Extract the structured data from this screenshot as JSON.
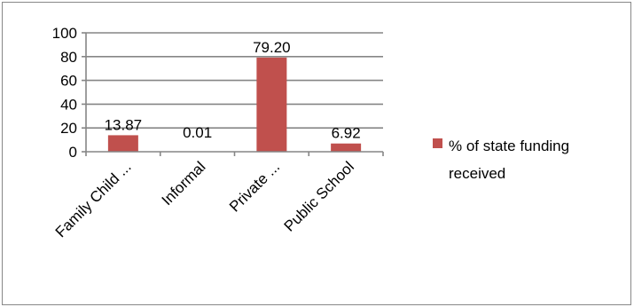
{
  "chart_data": {
    "type": "bar",
    "categories": [
      "Family Child ...",
      "Informal",
      "Private ...",
      "Public School"
    ],
    "series": [
      {
        "name": "% of state funding received",
        "values": [
          13.87,
          0.01,
          79.2,
          6.92
        ],
        "data_labels": [
          "13.87",
          "0.01",
          "79.20",
          "6.92"
        ],
        "color": "#c0504d"
      }
    ],
    "title": "",
    "xlabel": "",
    "ylabel": "",
    "ylim": [
      0,
      100
    ],
    "yticks": [
      0,
      20,
      40,
      60,
      80,
      100
    ],
    "ytick_labels": [
      "0",
      "20",
      "40",
      "60",
      "80",
      "100"
    ],
    "grid": true,
    "legend_position": "right",
    "legend_lines": [
      "% of state funding",
      "received"
    ]
  }
}
